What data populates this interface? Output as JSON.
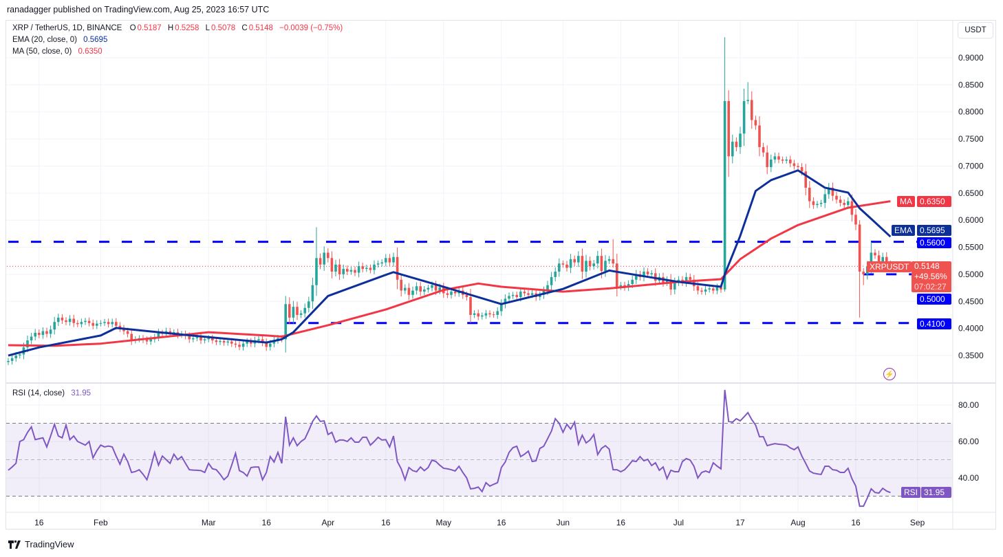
{
  "header": {
    "published": "ranadagger published on TradingView.com, Aug 25, 2023 16:57 UTC"
  },
  "legend": {
    "symbol": "XRP / TetherUS, 1D, BINANCE",
    "o_label": "O",
    "o": "0.5187",
    "h_label": "H",
    "h": "0.5258",
    "l_label": "L",
    "l": "0.5078",
    "c_label": "C",
    "c": "0.5148",
    "change": "−0.0039 (−0.75%)",
    "ema_label": "EMA (20, close, 0)",
    "ema_value": "0.5695",
    "ma_label": "MA (50, close, 0)",
    "ma_value": "0.6350",
    "rsi_label": "RSI (14, close)",
    "rsi_value": "31.95"
  },
  "currency_button": "USDT",
  "price_tags": {
    "ma": {
      "label": "MA",
      "value": "0.6350"
    },
    "ema": {
      "label": "EMA",
      "value": "0.5695"
    },
    "level_056": "0.5600",
    "symbol": {
      "label": "XRPUSDT",
      "price": "0.5148",
      "change": "+49.56%",
      "countdown": "07:02:27"
    },
    "level_050": "0.5000",
    "level_041": "0.4100",
    "rsi": {
      "label": "RSI",
      "value": "31.95"
    }
  },
  "footer": {
    "brand": "TradingView"
  },
  "colors": {
    "up": "#26a69a",
    "down": "#ef5350",
    "ema": "#0d2f9a",
    "ma": "#f23645",
    "levels": "#0000ff",
    "rsi": "#7e57c2",
    "last_price": "#f23645"
  },
  "icons": {
    "bolt": "lightning-bolt-icon",
    "logo": "tradingview-logo-icon"
  },
  "chart_data": [
    {
      "type": "candlestick",
      "interval": "1D",
      "x_range": [
        "2023-01-08",
        "2023-08-25"
      ],
      "ylim": [
        0.3,
        0.96
      ],
      "grid": true,
      "price_ticks": [
        "0.3500",
        "0.4000",
        "0.4500",
        "0.5000",
        "0.5500",
        "0.6000",
        "0.6500",
        "0.7000",
        "0.7500",
        "0.8000",
        "0.8500",
        "0.9000"
      ],
      "x_ticks": [
        {
          "label": "16",
          "date": "2023-01-16"
        },
        {
          "label": "Feb",
          "date": "2023-02-01"
        },
        {
          "label": "Mar",
          "date": "2023-03-01"
        },
        {
          "label": "16",
          "date": "2023-03-16"
        },
        {
          "label": "Apr",
          "date": "2023-04-01"
        },
        {
          "label": "16",
          "date": "2023-04-16"
        },
        {
          "label": "May",
          "date": "2023-05-01"
        },
        {
          "label": "16",
          "date": "2023-05-16"
        },
        {
          "label": "Jun",
          "date": "2023-06-01"
        },
        {
          "label": "16",
          "date": "2023-06-16"
        },
        {
          "label": "Jul",
          "date": "2023-07-01"
        },
        {
          "label": "17",
          "date": "2023-07-17"
        },
        {
          "label": "Aug",
          "date": "2023-08-01"
        },
        {
          "label": "16",
          "date": "2023-08-16"
        },
        {
          "label": "Sep",
          "date": "2023-09-01"
        }
      ],
      "first_open": 0.338,
      "closes": [
        0.34,
        0.345,
        0.35,
        0.352,
        0.365,
        0.378,
        0.385,
        0.392,
        0.388,
        0.395,
        0.39,
        0.398,
        0.412,
        0.42,
        0.415,
        0.412,
        0.418,
        0.41,
        0.408,
        0.412,
        0.414,
        0.41,
        0.405,
        0.409,
        0.41,
        0.412,
        0.408,
        0.412,
        0.405,
        0.4,
        0.395,
        0.39,
        0.378,
        0.38,
        0.382,
        0.379,
        0.376,
        0.38,
        0.384,
        0.392,
        0.39,
        0.395,
        0.392,
        0.393,
        0.388,
        0.39,
        0.386,
        0.38,
        0.382,
        0.384,
        0.378,
        0.38,
        0.382,
        0.378,
        0.375,
        0.377,
        0.374,
        0.376,
        0.372,
        0.37,
        0.366,
        0.372,
        0.376,
        0.372,
        0.378,
        0.38,
        0.374,
        0.366,
        0.372,
        0.378,
        0.382,
        0.38,
        0.445,
        0.42,
        0.44,
        0.425,
        0.428,
        0.438,
        0.45,
        0.48,
        0.53,
        0.518,
        0.54,
        0.53,
        0.505,
        0.518,
        0.5,
        0.51,
        0.505,
        0.508,
        0.503,
        0.515,
        0.51,
        0.512,
        0.508,
        0.518,
        0.52,
        0.522,
        0.53,
        0.522,
        0.532,
        0.49,
        0.47,
        0.475,
        0.462,
        0.47,
        0.478,
        0.468,
        0.472,
        0.475,
        0.48,
        0.47,
        0.476,
        0.465,
        0.462,
        0.468,
        0.465,
        0.47,
        0.462,
        0.458,
        0.425,
        0.428,
        0.422,
        0.424,
        0.428,
        0.426,
        0.425,
        0.432,
        0.445,
        0.455,
        0.46,
        0.462,
        0.458,
        0.468,
        0.465,
        0.462,
        0.465,
        0.458,
        0.462,
        0.47,
        0.48,
        0.495,
        0.505,
        0.52,
        0.518,
        0.512,
        0.528,
        0.522,
        0.534,
        0.505,
        0.525,
        0.515,
        0.52,
        0.534,
        0.506,
        0.525,
        0.528,
        0.52,
        0.477,
        0.48,
        0.476,
        0.482,
        0.49,
        0.5,
        0.495,
        0.505,
        0.5,
        0.502,
        0.488,
        0.495,
        0.485,
        0.49,
        0.472,
        0.485,
        0.49,
        0.485,
        0.495,
        0.49,
        0.478,
        0.47,
        0.468,
        0.472,
        0.474,
        0.47,
        0.476,
        0.472,
        0.82,
        0.718,
        0.745,
        0.735,
        0.76,
        0.82,
        0.822,
        0.785,
        0.775,
        0.735,
        0.725,
        0.698,
        0.712,
        0.718,
        0.712,
        0.71,
        0.712,
        0.705,
        0.7,
        0.698,
        0.69,
        0.66,
        0.635,
        0.628,
        0.63,
        0.632,
        0.648,
        0.66,
        0.645,
        0.638,
        0.632,
        0.628,
        0.635,
        0.61,
        0.592,
        0.505,
        0.5,
        0.515,
        0.54,
        0.535,
        0.522,
        0.532,
        0.519,
        0.5148
      ],
      "notable_wicks": [
        {
          "date": "2023-03-21",
          "high": 0.46
        },
        {
          "date": "2023-03-29",
          "high": 0.587
        },
        {
          "date": "2023-05-08",
          "low": 0.41
        },
        {
          "date": "2023-06-14",
          "high": 0.565
        },
        {
          "date": "2023-07-13",
          "high": 0.938,
          "low": 0.468
        },
        {
          "date": "2023-07-14",
          "high": 0.84,
          "low": 0.68
        },
        {
          "date": "2023-07-19",
          "high": 0.855
        },
        {
          "date": "2023-07-20",
          "high": 0.838
        },
        {
          "date": "2023-08-17",
          "high": 0.6,
          "low": 0.42
        },
        {
          "date": "2023-08-18",
          "low": 0.48
        },
        {
          "date": "2023-08-20",
          "high": 0.56
        }
      ],
      "ema20": [
        [
          "2023-01-08",
          0.35
        ],
        [
          "2023-01-16",
          0.365
        ],
        [
          "2023-02-01",
          0.387
        ],
        [
          "2023-02-05",
          0.401
        ],
        [
          "2023-02-16",
          0.393
        ],
        [
          "2023-03-01",
          0.384
        ],
        [
          "2023-03-16",
          0.374
        ],
        [
          "2023-03-20",
          0.38
        ],
        [
          "2023-03-23",
          0.393
        ],
        [
          "2023-04-01",
          0.46
        ],
        [
          "2023-04-16",
          0.499
        ],
        [
          "2023-04-18",
          0.504
        ],
        [
          "2023-05-01",
          0.477
        ],
        [
          "2023-05-16",
          0.445
        ],
        [
          "2023-06-01",
          0.473
        ],
        [
          "2023-06-13",
          0.507
        ],
        [
          "2023-07-01",
          0.486
        ],
        [
          "2023-07-12",
          0.477
        ],
        [
          "2023-07-13",
          0.5
        ],
        [
          "2023-07-17",
          0.571
        ],
        [
          "2023-07-21",
          0.654
        ],
        [
          "2023-07-25",
          0.674
        ],
        [
          "2023-08-01",
          0.692
        ],
        [
          "2023-08-08",
          0.66
        ],
        [
          "2023-08-14",
          0.651
        ],
        [
          "2023-08-17",
          0.622
        ],
        [
          "2023-08-21",
          0.596
        ],
        [
          "2023-08-25",
          0.5695
        ]
      ],
      "ma50": [
        [
          "2023-01-08",
          0.369
        ],
        [
          "2023-01-20",
          0.368
        ],
        [
          "2023-02-01",
          0.372
        ],
        [
          "2023-03-01",
          0.393
        ],
        [
          "2023-03-16",
          0.387
        ],
        [
          "2023-03-20",
          0.385
        ],
        [
          "2023-04-01",
          0.406
        ],
        [
          "2023-04-16",
          0.435
        ],
        [
          "2023-05-01",
          0.471
        ],
        [
          "2023-05-10",
          0.483
        ],
        [
          "2023-05-16",
          0.477
        ],
        [
          "2023-06-01",
          0.468
        ],
        [
          "2023-06-13",
          0.474
        ],
        [
          "2023-07-01",
          0.486
        ],
        [
          "2023-07-12",
          0.491
        ],
        [
          "2023-07-17",
          0.528
        ],
        [
          "2023-07-25",
          0.566
        ],
        [
          "2023-08-01",
          0.591
        ],
        [
          "2023-08-14",
          0.623
        ],
        [
          "2023-08-25",
          0.635
        ]
      ],
      "levels": [
        {
          "value": 0.56,
          "from": "2023-01-08",
          "to": "2023-09-10"
        },
        {
          "value": 0.5,
          "from": "2023-08-18",
          "to": "2023-09-10"
        },
        {
          "value": 0.41,
          "from": "2023-03-21",
          "to": "2023-09-10"
        }
      ],
      "last_price": 0.5148
    },
    {
      "type": "line",
      "title": "RSI (14, close)",
      "x_range": [
        "2023-01-08",
        "2023-08-25"
      ],
      "ylim": [
        20,
        90
      ],
      "y_ticks": [
        "40.00",
        "60.00",
        "80.00"
      ],
      "bands": {
        "upper": 70,
        "middle": 50,
        "lower": 30
      },
      "values": [
        44.2,
        46,
        48,
        60,
        61,
        65,
        68,
        61,
        61.5,
        62,
        57,
        63,
        69.4,
        63,
        62,
        69,
        61,
        63,
        60,
        59,
        58,
        60,
        51,
        55,
        58,
        57,
        57.5,
        57,
        52,
        47.5,
        53,
        49,
        43,
        43.5,
        44.5,
        42,
        39,
        46,
        54,
        47,
        52,
        50,
        48,
        53,
        50,
        51.7,
        48,
        44.5,
        44.3,
        44.2,
        44,
        43,
        48,
        45,
        44.5,
        42,
        39,
        41,
        47,
        53.5,
        44,
        43,
        41,
        45.7,
        46,
        46,
        39,
        43,
        51.7,
        48.7,
        54,
        48,
        73.6,
        58,
        62,
        57.7,
        60,
        61.5,
        66,
        71,
        74,
        71,
        71.3,
        63.8,
        65,
        59.6,
        60.8,
        60.8,
        60,
        62,
        59.6,
        59.6,
        62.3,
        62.3,
        58,
        60,
        62.3,
        60.8,
        61,
        57,
        63,
        49,
        45,
        39,
        45.7,
        44,
        43.4,
        46,
        44,
        45.7,
        49.8,
        49,
        47,
        45.3,
        45,
        44.5,
        43.8,
        46.4,
        43,
        40,
        34,
        34.3,
        35,
        32.5,
        37.4,
        35.5,
        36.5,
        37.4,
        45.7,
        48.7,
        54,
        56.6,
        57.4,
        51.7,
        53,
        54.7,
        49,
        49.4,
        56.2,
        57.4,
        61.5,
        65.7,
        72.5,
        70,
        65,
        69.4,
        66.8,
        70.6,
        58.5,
        63.4,
        59.2,
        60.8,
        63.8,
        52.8,
        56.2,
        57.7,
        55.8,
        44.5,
        44.5,
        43.4,
        44.5,
        46.8,
        49.4,
        49,
        51.7,
        49.4,
        50.2,
        46.8,
        48.3,
        44.2,
        46,
        39.6,
        44.2,
        43.4,
        43.4,
        49,
        50.6,
        49.8,
        46.4,
        40,
        43,
        43.8,
        43,
        48.3,
        46.5,
        45,
        88.3,
        71,
        70.6,
        72.5,
        71.3,
        73.5,
        75.8,
        72,
        69,
        62.6,
        62.6,
        57.7,
        58.3,
        58.8,
        58.5,
        58.3,
        58,
        56.5,
        55.5,
        57,
        52,
        48,
        43.8,
        42.6,
        42.2,
        41.9,
        46.4,
        46.4,
        44.5,
        44.2,
        43,
        43,
        45.3,
        39.6,
        35.5,
        24.5,
        24.5,
        29,
        34,
        32,
        31.7,
        34.3,
        32.8,
        31.95
      ]
    }
  ]
}
